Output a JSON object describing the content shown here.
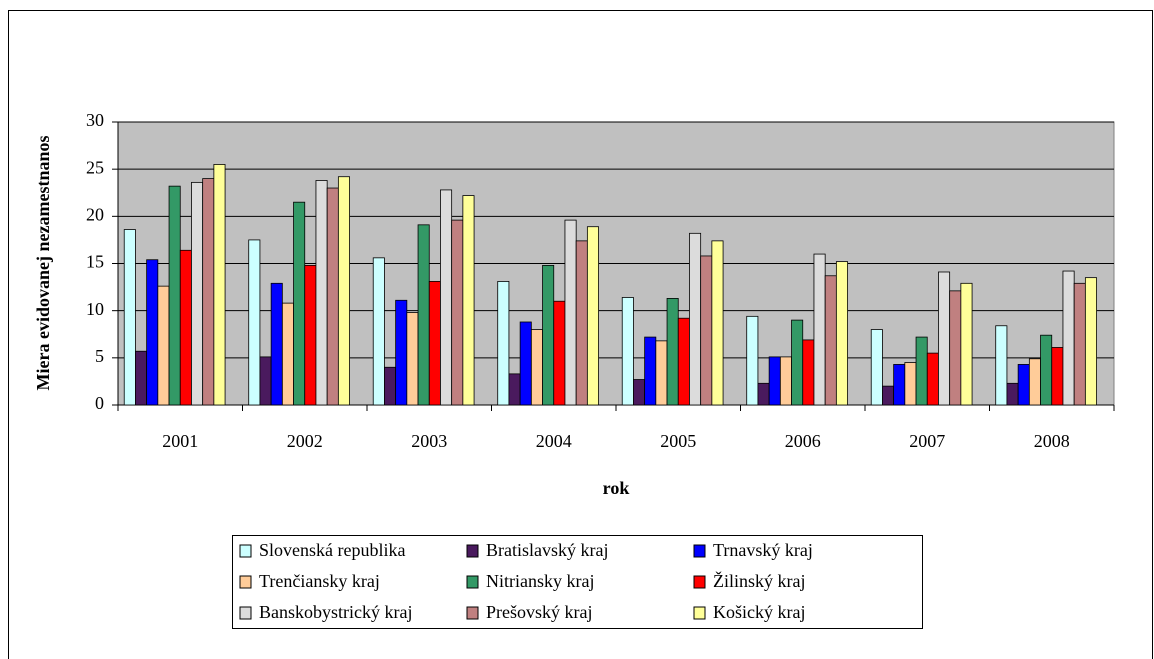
{
  "chart_data": {
    "type": "bar",
    "y_label": "Miera evidovanej nezamestnanos",
    "x_label": "rok",
    "categories": [
      "2001",
      "2002",
      "2003",
      "2004",
      "2005",
      "2006",
      "2007",
      "2008"
    ],
    "series": [
      {
        "name": "Slovenská republika",
        "color": "#ccffff",
        "values": [
          18.6,
          17.5,
          15.6,
          13.1,
          11.4,
          9.4,
          8.0,
          8.4
        ]
      },
      {
        "name": "Bratislavský kraj",
        "color": "#4a1a5e",
        "values": [
          5.7,
          5.1,
          4.0,
          3.3,
          2.7,
          2.3,
          2.0,
          2.3
        ]
      },
      {
        "name": "Trnavský kraj",
        "color": "#0000ff",
        "values": [
          15.4,
          12.9,
          11.1,
          8.8,
          7.2,
          5.1,
          4.3,
          4.3
        ]
      },
      {
        "name": "Trenčiansky kraj",
        "color": "#ffcc99",
        "values": [
          12.6,
          10.8,
          9.8,
          8.0,
          6.8,
          5.1,
          4.5,
          4.9
        ]
      },
      {
        "name": "Nitriansky kraj",
        "color": "#339966",
        "values": [
          23.2,
          21.5,
          19.1,
          14.8,
          11.3,
          9.0,
          7.2,
          7.4
        ]
      },
      {
        "name": "Žilinský kraj",
        "color": "#ff0000",
        "values": [
          16.4,
          14.8,
          13.1,
          11.0,
          9.2,
          6.9,
          5.5,
          6.1
        ]
      },
      {
        "name": "Banskobystrický kraj",
        "color": "#dcdcdc",
        "values": [
          23.6,
          23.8,
          22.8,
          19.6,
          18.2,
          16.0,
          14.1,
          14.2
        ]
      },
      {
        "name": "Prešovský kraj",
        "color": "#c08080",
        "values": [
          24.0,
          23.0,
          19.6,
          17.4,
          15.8,
          13.7,
          12.1,
          12.9
        ]
      },
      {
        "name": "Košický kraj",
        "color": "#ffff99",
        "values": [
          25.5,
          24.2,
          22.2,
          18.9,
          17.4,
          15.2,
          12.9,
          13.5
        ]
      }
    ],
    "ylim": [
      0,
      30
    ],
    "yticks": [
      0,
      5,
      10,
      15,
      20,
      25,
      30
    ],
    "grid": true,
    "plot_background": "#c0c0c0",
    "legend": "bottom"
  }
}
